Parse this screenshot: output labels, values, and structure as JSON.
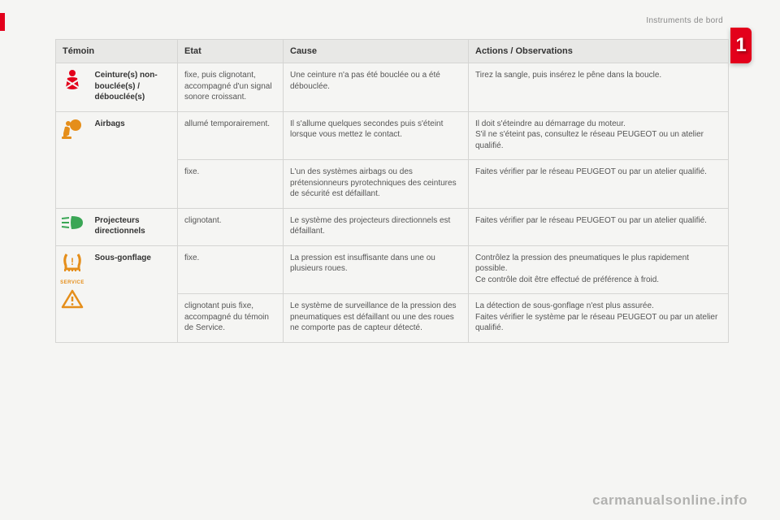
{
  "section_label": "Instruments de bord",
  "chapter_number": "1",
  "watermark": "carmanualsonline.info",
  "columns": {
    "temoin": "Témoin",
    "etat": "Etat",
    "cause": "Cause",
    "actions": "Actions / Observations"
  },
  "colors": {
    "accent_red": "#e3001b",
    "icon_orange": "#e58e1a",
    "icon_green": "#3aa655",
    "header_bg": "#e8e8e6",
    "border": "#d5d5d3",
    "page_bg": "#f5f5f3",
    "text": "#555555"
  },
  "rows": [
    {
      "icon": "seatbelt",
      "name": "Ceinture(s) non-bouclée(s) / débouclée(s)",
      "lines": [
        {
          "etat": "fixe, puis clignotant, accompagné d'un signal sonore croissant.",
          "cause": "Une ceinture n'a pas été bouclée ou a été débouclée.",
          "actions": "Tirez la sangle, puis insérez le pêne dans la boucle."
        }
      ]
    },
    {
      "icon": "airbag",
      "name": "Airbags",
      "lines": [
        {
          "etat": "allumé temporairement.",
          "cause": "Il s'allume quelques secondes puis s'éteint lorsque vous mettez le contact.",
          "actions": "Il doit s'éteindre au démarrage du moteur.\nS'il ne s'éteint pas, consultez le réseau PEUGEOT ou un atelier qualifié."
        },
        {
          "etat": "fixe.",
          "cause": "L'un des systèmes airbags ou des prétensionneurs pyrotechniques des ceintures de sécurité est défaillant.",
          "actions": "Faites vérifier par le réseau PEUGEOT ou par un atelier qualifié."
        }
      ]
    },
    {
      "icon": "headlamp",
      "name": "Projecteurs directionnels",
      "lines": [
        {
          "etat": "clignotant.",
          "cause": "Le système des projecteurs directionnels est défaillant.",
          "actions": "Faites vérifier par le réseau PEUGEOT ou par un atelier qualifié."
        }
      ]
    },
    {
      "icon": "tyre",
      "name": "Sous-gonflage",
      "lines": [
        {
          "etat": "fixe.",
          "cause": "La pression est insuffisante dans une ou plusieurs roues.",
          "actions": "Contrôlez la pression des pneumatiques le plus rapidement possible.\nCe contrôle doit être effectué de préférence à froid."
        },
        {
          "etat": "clignotant puis fixe, accompagné du témoin de Service.",
          "cause": "Le système de surveillance de la pression des pneumatiques est défaillant ou une des roues ne comporte pas de capteur détecté.",
          "actions": "La détection de sous-gonflage n'est plus assurée.\nFaites vérifier le système par le réseau PEUGEOT ou par un atelier qualifié."
        }
      ]
    }
  ]
}
